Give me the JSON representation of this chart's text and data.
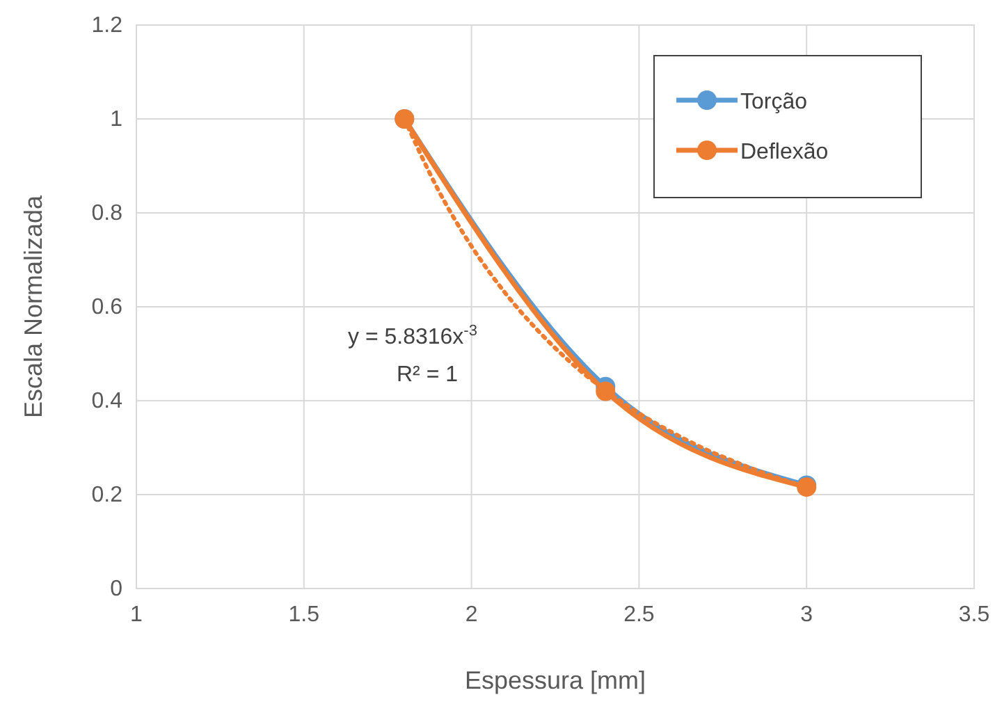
{
  "chart_data": {
    "type": "line",
    "xlabel": "Espessura [mm]",
    "ylabel": "Escala Normalizada",
    "xlim": [
      1,
      3.5
    ],
    "xticks": [
      1,
      1.5,
      2,
      2.5,
      3,
      3.5
    ],
    "ylim": [
      0,
      1.2
    ],
    "yticks": [
      0,
      0.2,
      0.4,
      0.6,
      0.8,
      1,
      1.2
    ],
    "grid": true,
    "legend": "top right",
    "marker": "circle",
    "line_style": "solid",
    "x": [
      1.8,
      2.4,
      3
    ],
    "series": [
      {
        "name": "Torção",
        "color": "#5b9bd5",
        "values": [
          1,
          0.43,
          0.22
        ]
      },
      {
        "name": "Deflexão",
        "color": "#ed7d31",
        "values": [
          1,
          0.42,
          0.216
        ]
      },
      {
        "color": "#ed7d31",
        "line_style": "dotted",
        "marker": "none",
        "x": [
          1.8,
          1.9,
          2,
          2.1,
          2.2,
          2.3,
          2.4,
          2.5,
          2.6,
          2.7,
          2.8,
          2.9,
          3
        ],
        "values": [
          1,
          0.85,
          0.729,
          0.63,
          0.548,
          0.479,
          0.422,
          0.373,
          0.332,
          0.296,
          0.266,
          0.239,
          0.216
        ]
      }
    ],
    "annotations": [
      "y = 5.8316x$^{-3}$",
      "R² = 1"
    ]
  }
}
